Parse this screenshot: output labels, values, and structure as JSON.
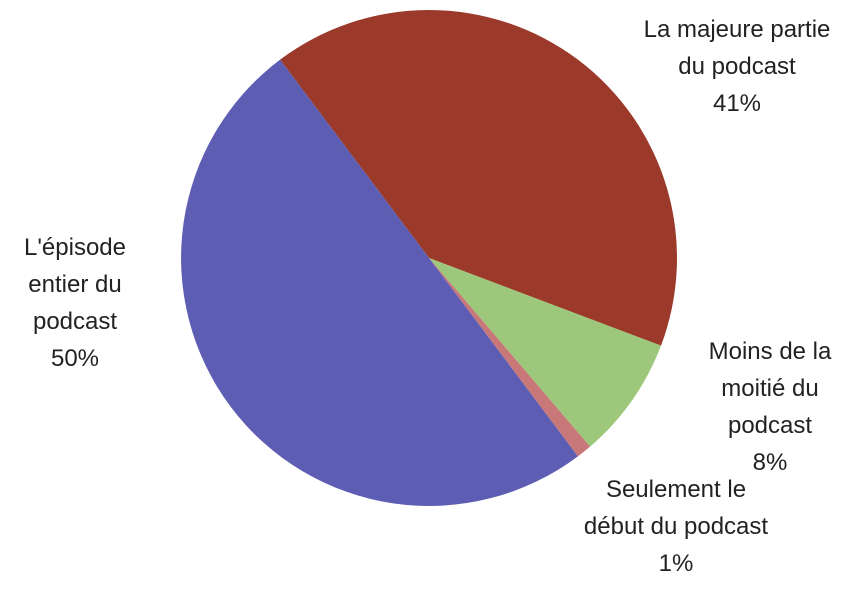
{
  "chart_data": {
    "type": "pie",
    "categories": [
      "La majeure partie du podcast",
      "Moins de la moitié du podcast",
      "Seulement le début du podcast",
      "L'épisode entier du podcast"
    ],
    "values": [
      41,
      8,
      1,
      50
    ],
    "value_labels": [
      "41%",
      "8%",
      "1%",
      "50%"
    ],
    "colors": [
      "#9b3a2b",
      "#9dc77a",
      "#c87878",
      "#5e5db4"
    ]
  }
}
